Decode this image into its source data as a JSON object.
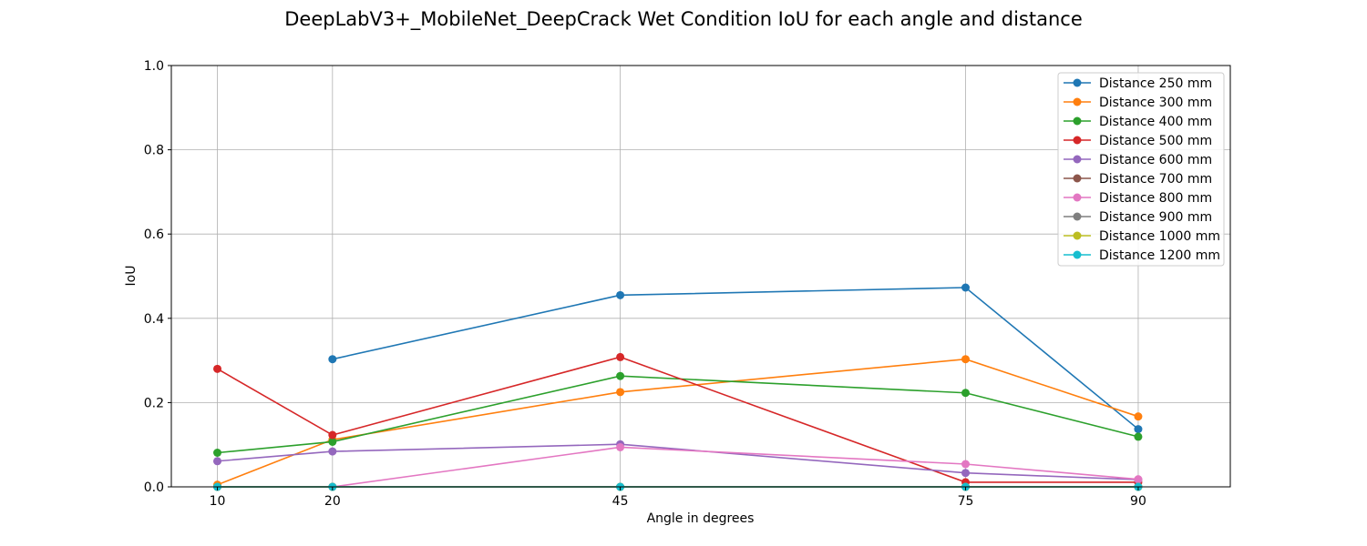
{
  "chart_data": {
    "type": "line",
    "title": "DeepLabV3+_MobileNet_DeepCrack Wet Condition IoU for each angle and distance",
    "xlabel": "Angle in degrees",
    "ylabel": "IoU",
    "x": [
      10,
      20,
      45,
      75,
      90
    ],
    "xticks": [
      "10",
      "20",
      "45",
      "75",
      "90"
    ],
    "xlim": [
      6,
      98
    ],
    "ylim": [
      0,
      1
    ],
    "yticks": [
      "0.0",
      "0.2",
      "0.4",
      "0.6",
      "0.8",
      "1.0"
    ],
    "grid": true,
    "legend_position": "top-right",
    "series": [
      {
        "name": "Distance 250 mm",
        "color": "#1f77b4",
        "values": [
          null,
          0.303,
          0.455,
          0.473,
          0.137
        ]
      },
      {
        "name": "Distance 300 mm",
        "color": "#ff7f0e",
        "values": [
          0.005,
          0.112,
          0.225,
          0.303,
          0.167
        ]
      },
      {
        "name": "Distance 400 mm",
        "color": "#2ca02c",
        "values": [
          0.081,
          0.107,
          0.263,
          0.223,
          0.119
        ]
      },
      {
        "name": "Distance 500 mm",
        "color": "#d62728",
        "values": [
          0.28,
          0.123,
          0.308,
          0.011,
          0.011
        ]
      },
      {
        "name": "Distance 600 mm",
        "color": "#9467bd",
        "values": [
          0.061,
          0.084,
          0.101,
          0.033,
          0.017
        ]
      },
      {
        "name": "Distance 700 mm",
        "color": "#8c564b",
        "values": [
          0,
          0,
          0,
          0,
          0
        ]
      },
      {
        "name": "Distance 800 mm",
        "color": "#e377c2",
        "values": [
          null,
          0.0,
          0.094,
          0.054,
          0.018
        ]
      },
      {
        "name": "Distance 900 mm",
        "color": "#7f7f7f",
        "values": [
          0,
          0,
          0,
          0,
          0
        ]
      },
      {
        "name": "Distance 1000 mm",
        "color": "#bcbd22",
        "values": [
          0,
          0,
          0,
          0,
          0
        ]
      },
      {
        "name": "Distance 1200 mm",
        "color": "#17becf",
        "values": [
          0,
          0,
          0,
          0,
          0
        ]
      }
    ]
  }
}
